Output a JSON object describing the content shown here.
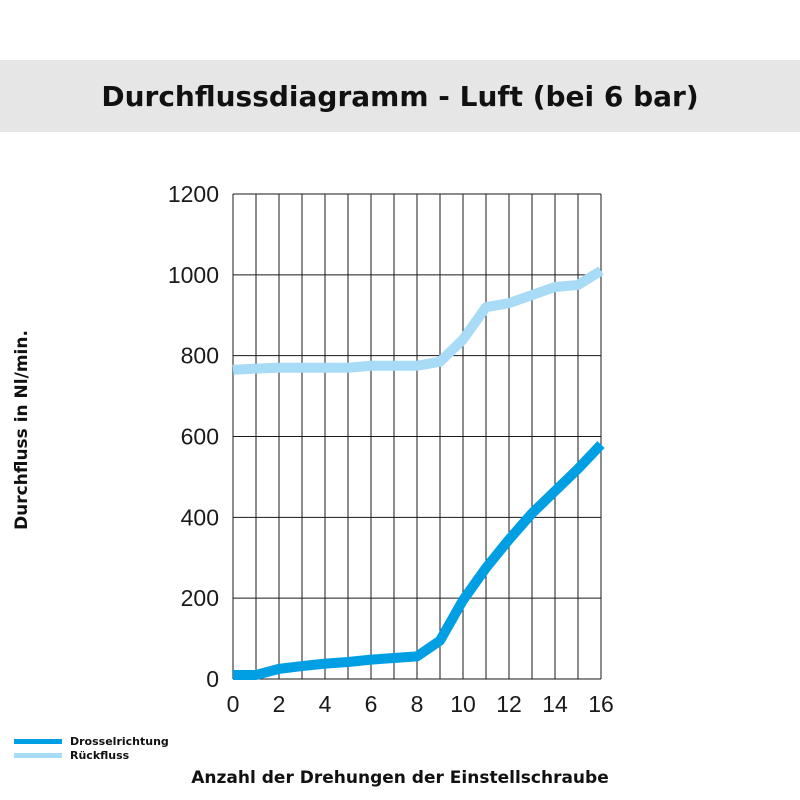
{
  "chart_data": {
    "type": "line",
    "title": "Durchflussdiagramm - Luft (bei 6 bar)",
    "xlabel": "Anzahl der Drehungen der Einstellschraube",
    "ylabel": "Durchfluss in Nl/min.",
    "xlim": [
      0,
      16
    ],
    "ylim": [
      0,
      1200
    ],
    "xticks": [
      0,
      2,
      4,
      6,
      8,
      10,
      12,
      14,
      16
    ],
    "yticks": [
      0,
      200,
      400,
      600,
      800,
      1000,
      1200
    ],
    "grid": true,
    "legend_position": "bottom-left",
    "series": [
      {
        "name": "Drosselrichtung",
        "color": "#009fe3",
        "x": [
          0,
          1,
          2,
          3,
          4,
          5,
          6,
          7,
          8,
          9,
          10,
          11,
          12,
          13,
          14,
          15,
          16
        ],
        "y": [
          10,
          10,
          25,
          32,
          38,
          42,
          48,
          52,
          56,
          95,
          195,
          275,
          345,
          410,
          465,
          520,
          580
        ]
      },
      {
        "name": "Rückfluss",
        "color": "#a8dbf6",
        "x": [
          0,
          1,
          2,
          3,
          4,
          5,
          6,
          7,
          8,
          9,
          10,
          11,
          12,
          13,
          14,
          15,
          16
        ],
        "y": [
          765,
          768,
          770,
          770,
          770,
          770,
          775,
          775,
          775,
          785,
          840,
          920,
          930,
          950,
          970,
          975,
          1010
        ]
      }
    ]
  }
}
